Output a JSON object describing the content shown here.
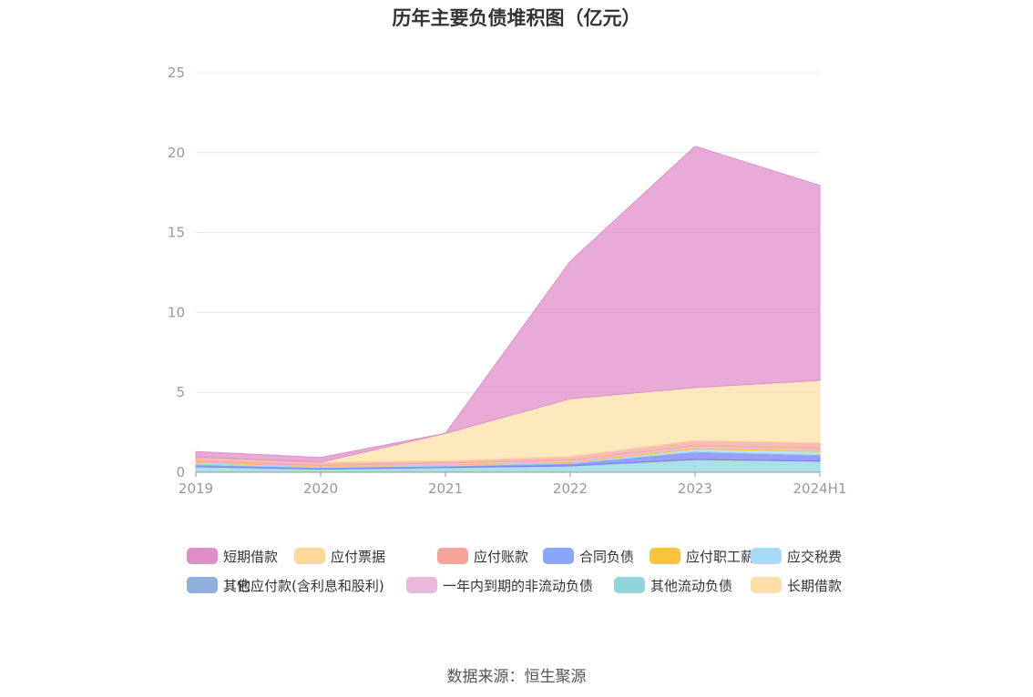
{
  "chart_data": {
    "type": "area",
    "stacked": true,
    "title": "历年主要负债堆积图（亿元）",
    "categories": [
      "2019",
      "2020",
      "2021",
      "2022",
      "2023",
      "2024H1"
    ],
    "ylim": [
      0,
      25
    ],
    "yticks": [
      0,
      5,
      10,
      15,
      20,
      25
    ],
    "grid": true,
    "legend_position": "bottom",
    "series": [
      {
        "name": "短期借款",
        "color": "#e08ec8",
        "values": [
          0.35,
          0.3,
          0.0,
          8.6,
          15.1,
          12.2
        ]
      },
      {
        "name": "应付票据",
        "color": "#fdd89a",
        "values": [
          0.0,
          0.0,
          0.0,
          0.0,
          0.0,
          0.0
        ]
      },
      {
        "name": "应付账款",
        "color": "#f7a59a",
        "values": [
          0.25,
          0.2,
          0.15,
          0.25,
          0.35,
          0.35
        ]
      },
      {
        "name": "合同负债",
        "color": "#8aa6f7",
        "values": [
          0.1,
          0.05,
          0.05,
          0.05,
          0.1,
          0.1
        ]
      },
      {
        "name": "应付职工薪酬",
        "color": "#f9c43d",
        "values": [
          0.05,
          0.03,
          0.03,
          0.05,
          0.1,
          0.1
        ]
      },
      {
        "name": "应交税费",
        "color": "#a6dcf7",
        "values": [
          0.1,
          0.05,
          0.05,
          0.05,
          0.15,
          0.2
        ]
      },
      {
        "name": "其他应付款(含利息和股利)",
        "color": "#7a7ef2",
        "values": [
          0.05,
          0.05,
          0.05,
          0.1,
          0.4,
          0.3
        ]
      },
      {
        "name": "一年内到期的非流动负债",
        "color": "#eab8da",
        "values": [
          0.05,
          0.05,
          0.1,
          0.1,
          0.1,
          0.1
        ]
      },
      {
        "name": "其他流动负债",
        "color": "#8fd5dc",
        "values": [
          0.35,
          0.2,
          0.3,
          0.4,
          0.8,
          0.7
        ]
      },
      {
        "name": "长期借款",
        "color": "#fde0a8",
        "values": [
          0.0,
          0.0,
          1.7,
          3.6,
          3.3,
          3.9
        ]
      },
      {
        "name": "其它",
        "color": "#8fb0dc",
        "values": [
          0.0,
          0.0,
          0.0,
          0.0,
          0.0,
          0.0
        ]
      }
    ],
    "stack_order": [
      "其他流动负债",
      "其它",
      "其他应付款(含利息和股利)",
      "合同负债",
      "应交税费",
      "应付职工薪酬",
      "一年内到期的非流动负债",
      "应付账款",
      "应付票据",
      "长期借款",
      "短期借款"
    ]
  },
  "source": "数据来源：恒生聚源"
}
